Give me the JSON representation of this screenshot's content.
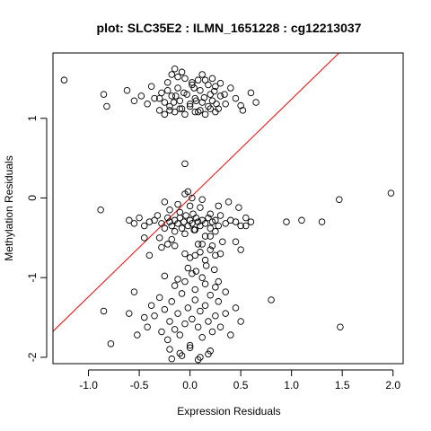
{
  "chart_data": {
    "type": "scatter",
    "title": "plot: SLC35E2 : ILMN_1651228 : cg12213037",
    "xlabel": "Expression Residuals",
    "ylabel": "Methylation Residuals",
    "xlim": [
      -1.35,
      2.1
    ],
    "ylim": [
      -2.08,
      1.82
    ],
    "xticks": [
      -1.0,
      -0.5,
      0.0,
      0.5,
      1.0,
      1.5,
      2.0
    ],
    "xtick_labels": [
      "-1.0",
      "-0.5",
      "0.0",
      "0.5",
      "1.0",
      "1.5",
      "2.0"
    ],
    "yticks": [
      -2,
      -1,
      0,
      1
    ],
    "ytick_labels": [
      "-2",
      "-1",
      "0",
      "1"
    ],
    "grid": false,
    "regression_line": {
      "intercept": 0.0,
      "slope": 1.24,
      "color": "#ff0000"
    },
    "points": {
      "x": [
        -1.24,
        -0.85,
        -0.82,
        -0.62,
        -0.55,
        -0.48,
        -0.42,
        -0.38,
        -0.35,
        -0.3,
        -0.28,
        -0.25,
        -0.22,
        -0.2,
        -0.18,
        -0.15,
        -0.12,
        -0.1,
        -0.08,
        -0.05,
        -0.03,
        0.0,
        0.02,
        0.05,
        0.08,
        0.1,
        0.12,
        0.15,
        0.18,
        0.2,
        0.22,
        0.25,
        0.28,
        0.3,
        0.35,
        0.4,
        0.45,
        0.52,
        0.6,
        0.65,
        -0.25,
        -0.2,
        -0.15,
        -0.1,
        -0.05,
        0.0,
        0.05,
        0.1,
        0.15,
        0.2,
        0.25,
        -0.18,
        -0.12,
        -0.08,
        0.02,
        0.08,
        0.12,
        0.18,
        0.22,
        0.3,
        -0.3,
        -0.22,
        -0.14,
        -0.06,
        0.04,
        0.14,
        0.24,
        0.34,
        -0.16,
        0.06,
        0.26,
        0.5,
        -0.88,
        -0.6,
        -0.55,
        -0.5,
        -0.45,
        -0.4,
        -0.35,
        -0.32,
        -0.28,
        -0.25,
        -0.22,
        -0.2,
        -0.18,
        -0.15,
        -0.12,
        -0.1,
        -0.08,
        -0.06,
        -0.04,
        -0.02,
        0.0,
        0.02,
        0.04,
        0.06,
        0.08,
        0.1,
        0.12,
        0.15,
        0.18,
        0.2,
        0.22,
        0.25,
        0.28,
        0.3,
        0.35,
        0.4,
        0.45,
        0.5,
        0.55,
        0.6,
        0.95,
        1.1,
        1.3,
        1.47,
        1.98,
        -0.2,
        -0.1,
        0.0,
        0.1,
        0.2,
        -0.15,
        -0.05,
        0.05,
        0.15,
        0.25,
        -0.25,
        -0.12,
        0.02,
        0.12,
        0.28,
        0.38,
        0.48,
        -0.3,
        0.32,
        0.55,
        -0.05,
        -0.02,
        0.03,
        -0.18,
        0.08,
        0.2,
        -0.05,
        -0.45,
        -0.4,
        -0.22,
        -0.15,
        -0.05,
        0.0,
        0.05,
        0.1,
        0.15,
        0.2,
        0.25,
        0.3,
        0.45,
        0.5,
        -0.28,
        0.12,
        0.22,
        -0.85,
        -0.78,
        -0.6,
        -0.55,
        -0.52,
        -0.45,
        -0.42,
        -0.38,
        -0.35,
        -0.3,
        -0.28,
        -0.25,
        -0.22,
        -0.2,
        -0.18,
        -0.15,
        -0.12,
        -0.1,
        -0.08,
        -0.05,
        -0.02,
        0.0,
        0.02,
        0.05,
        0.08,
        0.1,
        0.12,
        0.15,
        0.18,
        0.2,
        0.22,
        0.25,
        0.28,
        0.3,
        0.35,
        0.4,
        0.45,
        0.5,
        -0.2,
        -0.1,
        0.0,
        0.1,
        0.2,
        -0.15,
        -0.05,
        0.05,
        0.15,
        0.25,
        -0.25,
        -0.12,
        0.02,
        0.12,
        0.28,
        0.35,
        0.8,
        1.48,
        -0.18,
        -0.08,
        0.08,
        0.18,
        -0.02,
        0.06,
        0.16,
        0.24
      ],
      "y": [
        1.48,
        1.3,
        1.15,
        1.35,
        1.22,
        1.28,
        1.18,
        1.4,
        1.25,
        1.1,
        1.32,
        1.2,
        1.45,
        1.15,
        1.28,
        1.62,
        1.38,
        1.22,
        1.12,
        1.5,
        1.3,
        1.18,
        1.42,
        1.25,
        1.08,
        1.35,
        1.2,
        1.48,
        1.15,
        1.3,
        1.22,
        1.4,
        1.12,
        1.28,
        1.18,
        1.38,
        1.25,
        1.1,
        1.32,
        1.2,
        1.05,
        1.1,
        1.08,
        1.12,
        1.05,
        1.15,
        1.08,
        1.1,
        1.05,
        1.12,
        1.08,
        1.55,
        1.52,
        1.58,
        1.45,
        1.48,
        1.55,
        1.42,
        1.5,
        1.44,
        1.25,
        1.35,
        1.28,
        1.32,
        1.38,
        1.26,
        1.34,
        1.3,
        1.2,
        1.22,
        1.18,
        1.16,
        -0.15,
        -0.28,
        -0.32,
        -0.25,
        -0.35,
        -0.3,
        -0.28,
        -0.22,
        -0.32,
        -0.38,
        -0.25,
        -0.3,
        -0.35,
        -0.28,
        -0.32,
        -0.25,
        -0.38,
        -0.3,
        -0.22,
        -0.35,
        -0.28,
        -0.32,
        -0.4,
        -0.25,
        -0.3,
        -0.35,
        -0.28,
        -0.32,
        -0.25,
        -0.38,
        -0.3,
        -0.28,
        -0.35,
        -0.22,
        -0.32,
        -0.28,
        -0.3,
        -0.35,
        -0.25,
        -0.3,
        -0.3,
        -0.28,
        -0.3,
        -0.02,
        0.06,
        -0.15,
        -0.18,
        -0.1,
        -0.12,
        -0.2,
        -0.42,
        -0.45,
        -0.4,
        -0.48,
        -0.42,
        -0.05,
        -0.08,
        0.0,
        -0.02,
        -0.1,
        -0.05,
        -0.12,
        -0.5,
        -0.55,
        -0.35,
        0.05,
        0.08,
        -0.2,
        -0.52,
        -0.58,
        -0.48,
        0.43,
        -0.5,
        -0.72,
        -0.58,
        -0.6,
        -0.7,
        -0.75,
        -0.72,
        -0.68,
        -0.78,
        -0.65,
        -0.72,
        -0.7,
        -0.55,
        -0.65,
        -0.62,
        -0.58,
        -0.6,
        -1.42,
        -1.83,
        -1.45,
        -1.18,
        -1.72,
        -1.5,
        -1.62,
        -1.35,
        -1.48,
        -1.25,
        -1.68,
        -1.4,
        -1.78,
        -1.55,
        -1.3,
        -1.65,
        -1.45,
        -1.72,
        -1.2,
        -1.58,
        -1.38,
        -1.85,
        -1.52,
        -1.28,
        -1.62,
        -1.42,
        -1.75,
        -1.35,
        -1.55,
        -1.22,
        -1.68,
        -1.48,
        -1.3,
        -1.62,
        -1.45,
        -1.72,
        -1.38,
        -1.55,
        -1.9,
        -1.95,
        -1.88,
        -2.0,
        -1.92,
        -1.1,
        -1.05,
        -1.15,
        -1.08,
        -1.12,
        -0.98,
        -1.02,
        -0.95,
        -1.0,
        -1.05,
        -1.18,
        -1.28,
        -1.62,
        -2.02,
        -1.98,
        -2.03,
        -1.96,
        -0.88,
        -0.92,
        -0.85,
        -0.9
      ]
    }
  }
}
